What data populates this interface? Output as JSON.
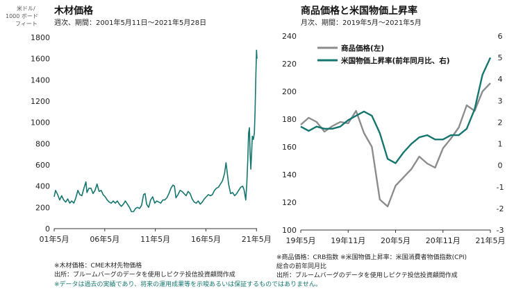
{
  "chart_data": [
    {
      "type": "line",
      "title": "木材価格",
      "subtitle": "週次、期間：2001年5月11日～2021年5月28日",
      "ylabel": "米ドル／1000 ボードフィート",
      "ylabel_lines": [
        "米ドル/",
        "1000 ボード",
        "フィート"
      ],
      "ylim": [
        0,
        1800
      ],
      "yticks": [
        0,
        200,
        400,
        600,
        800,
        1000,
        1200,
        1400,
        1600,
        1800
      ],
      "xlim": [
        2001.36,
        2021.41
      ],
      "xticks": [
        {
          "x": 2001.36,
          "label": "01年5月"
        },
        {
          "x": 2006.36,
          "label": "06年5月"
        },
        {
          "x": 2011.36,
          "label": "11年5月"
        },
        {
          "x": 2016.36,
          "label": "16年5月"
        },
        {
          "x": 2021.36,
          "label": "21年5月"
        }
      ],
      "grid": false,
      "color": "#14766e",
      "series": [
        {
          "values": [
            [
              2001.36,
              300
            ],
            [
              2001.5,
              360
            ],
            [
              2001.7,
              320
            ],
            [
              2001.9,
              270
            ],
            [
              2002.1,
              310
            ],
            [
              2002.3,
              270
            ],
            [
              2002.5,
              250
            ],
            [
              2002.7,
              280
            ],
            [
              2002.9,
              240
            ],
            [
              2003.1,
              260
            ],
            [
              2003.3,
              240
            ],
            [
              2003.5,
              290
            ],
            [
              2003.7,
              360
            ],
            [
              2003.9,
              320
            ],
            [
              2004.1,
              310
            ],
            [
              2004.3,
              380
            ],
            [
              2004.5,
              440
            ],
            [
              2004.6,
              340
            ],
            [
              2004.8,
              380
            ],
            [
              2005.0,
              380
            ],
            [
              2005.2,
              330
            ],
            [
              2005.4,
              360
            ],
            [
              2005.6,
              420
            ],
            [
              2005.8,
              350
            ],
            [
              2006.0,
              360
            ],
            [
              2006.2,
              320
            ],
            [
              2006.4,
              300
            ],
            [
              2006.6,
              270
            ],
            [
              2006.8,
              250
            ],
            [
              2007.0,
              240
            ],
            [
              2007.2,
              260
            ],
            [
              2007.4,
              240
            ],
            [
              2007.6,
              260
            ],
            [
              2007.8,
              230
            ],
            [
              2008.0,
              210
            ],
            [
              2008.2,
              230
            ],
            [
              2008.4,
              260
            ],
            [
              2008.6,
              230
            ],
            [
              2008.8,
              200
            ],
            [
              2009.0,
              160
            ],
            [
              2009.2,
              160
            ],
            [
              2009.4,
              190
            ],
            [
              2009.6,
              200
            ],
            [
              2009.8,
              190
            ],
            [
              2010.0,
              220
            ],
            [
              2010.2,
              320
            ],
            [
              2010.35,
              330
            ],
            [
              2010.5,
              230
            ],
            [
              2010.7,
              200
            ],
            [
              2010.9,
              270
            ],
            [
              2011.1,
              300
            ],
            [
              2011.3,
              240
            ],
            [
              2011.5,
              260
            ],
            [
              2011.7,
              250
            ],
            [
              2011.9,
              240
            ],
            [
              2012.1,
              270
            ],
            [
              2012.3,
              270
            ],
            [
              2012.5,
              290
            ],
            [
              2012.7,
              330
            ],
            [
              2012.9,
              380
            ],
            [
              2013.1,
              410
            ],
            [
              2013.25,
              400
            ],
            [
              2013.4,
              290
            ],
            [
              2013.6,
              320
            ],
            [
              2013.8,
              360
            ],
            [
              2014.0,
              350
            ],
            [
              2014.2,
              330
            ],
            [
              2014.4,
              310
            ],
            [
              2014.6,
              350
            ],
            [
              2014.8,
              330
            ],
            [
              2015.0,
              280
            ],
            [
              2015.2,
              250
            ],
            [
              2015.4,
              240
            ],
            [
              2015.6,
              260
            ],
            [
              2015.8,
              230
            ],
            [
              2016.0,
              250
            ],
            [
              2016.2,
              280
            ],
            [
              2016.4,
              300
            ],
            [
              2016.6,
              320
            ],
            [
              2016.8,
              310
            ],
            [
              2017.0,
              320
            ],
            [
              2017.2,
              360
            ],
            [
              2017.4,
              380
            ],
            [
              2017.6,
              390
            ],
            [
              2017.8,
              420
            ],
            [
              2018.0,
              450
            ],
            [
              2018.2,
              520
            ],
            [
              2018.35,
              620
            ],
            [
              2018.45,
              540
            ],
            [
              2018.6,
              420
            ],
            [
              2018.8,
              330
            ],
            [
              2019.0,
              340
            ],
            [
              2019.2,
              310
            ],
            [
              2019.4,
              330
            ],
            [
              2019.6,
              360
            ],
            [
              2019.8,
              390
            ],
            [
              2020.0,
              400
            ],
            [
              2020.15,
              360
            ],
            [
              2020.3,
              270
            ],
            [
              2020.4,
              420
            ],
            [
              2020.5,
              640
            ],
            [
              2020.58,
              900
            ],
            [
              2020.66,
              950
            ],
            [
              2020.72,
              720
            ],
            [
              2020.8,
              560
            ],
            [
              2020.88,
              720
            ],
            [
              2020.95,
              870
            ],
            [
              2021.05,
              840
            ],
            [
              2021.15,
              900
            ],
            [
              2021.22,
              1100
            ],
            [
              2021.3,
              1450
            ],
            [
              2021.36,
              1680
            ],
            [
              2021.41,
              1600
            ]
          ]
        }
      ]
    },
    {
      "type": "line",
      "title": "商品価格と米国物価上昇率",
      "subtitle": "月次、期間：2019年5月～2021年5月",
      "ylim": [
        100,
        240
      ],
      "yticks": [
        100,
        120,
        140,
        160,
        180,
        200,
        220,
        240
      ],
      "y2lim": [
        -3,
        6
      ],
      "y2ticks": [
        -3,
        -2,
        -1,
        0,
        1,
        2,
        3,
        4,
        5,
        6
      ],
      "xlim": [
        0,
        24
      ],
      "xticks": [
        {
          "x": 0,
          "label": "19年5月"
        },
        {
          "x": 6,
          "label": "19年11月"
        },
        {
          "x": 12,
          "label": "20年5月"
        },
        {
          "x": 18,
          "label": "20年11月"
        },
        {
          "x": 24,
          "label": "21年5月"
        }
      ],
      "grid": false,
      "legend_position": "top-left",
      "series": [
        {
          "name": "商品価格(左)",
          "axis": "left",
          "color": "#8c8c8c",
          "values": [
            176,
            181,
            178,
            171,
            175,
            178,
            177,
            186,
            170,
            160,
            122,
            117,
            132,
            138,
            144,
            153,
            148,
            145,
            159,
            166,
            174,
            190,
            186,
            200,
            206
          ]
        },
        {
          "name": "米国物価上昇率(前年同月比、右)",
          "axis": "right",
          "color": "#14766e",
          "values": [
            1.8,
            1.6,
            1.8,
            1.7,
            1.7,
            1.8,
            2.1,
            2.3,
            2.5,
            2.3,
            1.5,
            0.3,
            0.1,
            0.6,
            1.0,
            1.3,
            1.4,
            1.2,
            1.2,
            1.4,
            1.4,
            1.7,
            2.6,
            4.2,
            5.0
          ]
        }
      ]
    }
  ],
  "notes_left": [
    "※木材価格：CME木材先物価格",
    "出所：ブルームバーグのデータを使用しピクテ投信投資顧問作成"
  ],
  "notes_right": [
    "※商品価格：CRB指数 ※米国物価上昇率：米国消費者物価指数(CPI)",
    "総合の前年同月比",
    "出所：ブルームバーグのデータを使用しピクテ投信投資顧問作成"
  ],
  "disclaimer": "※データは過去の実績であり、将来の運用成果等を示唆あるいは保証するものではありません。"
}
